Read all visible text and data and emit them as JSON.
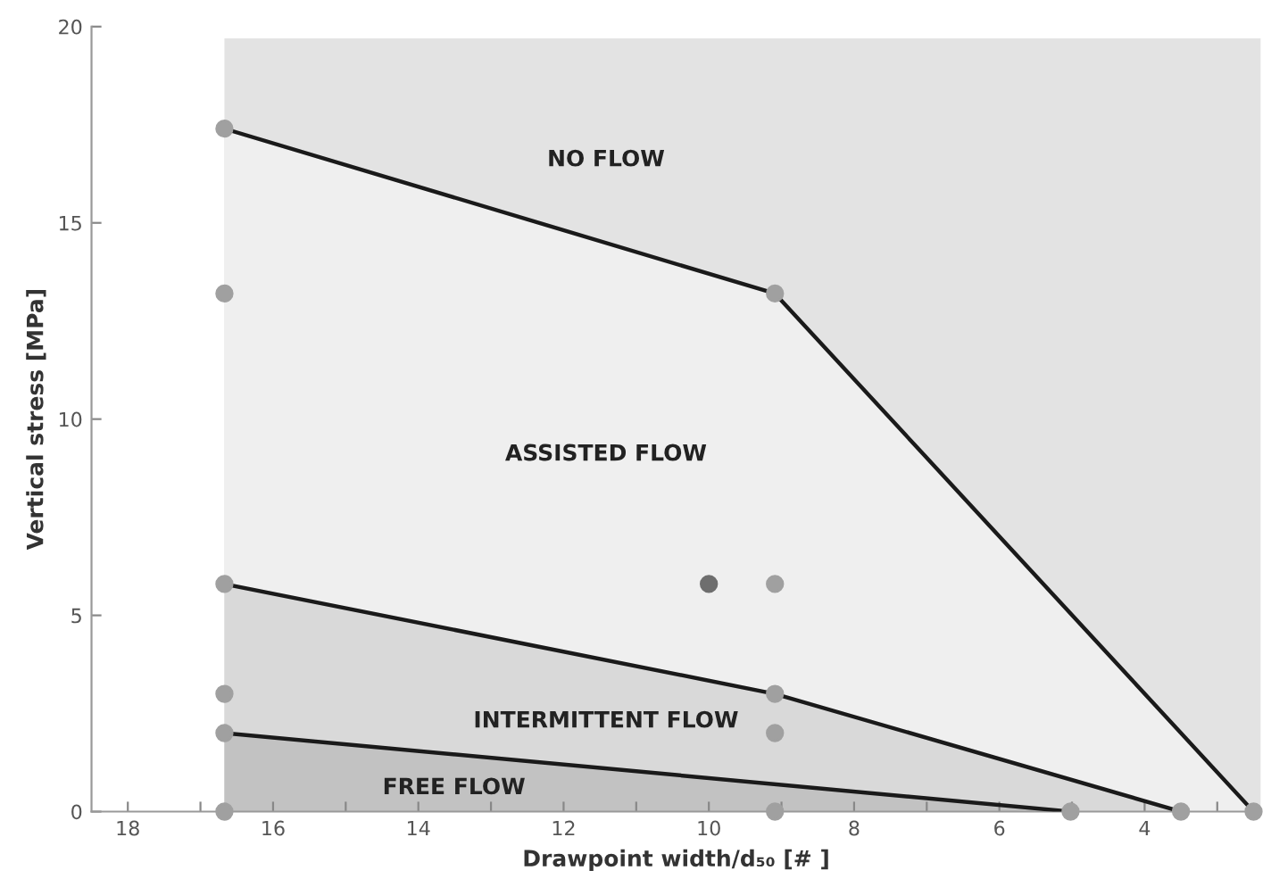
{
  "chart_data": {
    "type": "area",
    "xlabel": "Drawpoint width/d₅₀ [# ]",
    "ylabel": "Vertical stress [MPa]",
    "xlim": [
      18.5,
      2.4
    ],
    "ylim": [
      0,
      20
    ],
    "xticks": [
      18,
      {
        "value": 17,
        "label": null
      },
      16,
      {
        "value": 15,
        "label": null
      },
      14,
      {
        "value": 13,
        "label": null
      },
      12,
      {
        "value": 11,
        "label": null
      },
      10,
      {
        "value": 9,
        "label": null
      },
      8,
      {
        "value": 7,
        "label": null
      },
      6,
      {
        "value": 5,
        "label": null
      },
      4,
      {
        "value": 3,
        "label": null
      }
    ],
    "yticks": [
      0,
      5,
      10,
      15,
      20
    ],
    "grid": false,
    "legend": false,
    "series": [
      {
        "color": "#e3e3e3",
        "x": [
          16.67,
          2.4
        ],
        "values": [
          19.7,
          19.7
        ]
      },
      {
        "color": "#efefef",
        "line_style": "solid",
        "x": [
          16.67,
          9.09,
          2.5
        ],
        "values": [
          17.4,
          13.2,
          0
        ]
      },
      {
        "color": "#d9d9d9",
        "line_style": "solid",
        "x": [
          16.67,
          9.09,
          3.5
        ],
        "values": [
          5.8,
          3.0,
          0
        ]
      },
      {
        "color": "#c2c2c2",
        "line_style": "solid",
        "x": [
          16.67,
          5.02
        ],
        "values": [
          2.0,
          0
        ]
      },
      {
        "type": "scatter",
        "marker": "circle",
        "x": [
          16.67,
          16.67,
          16.67,
          16.67,
          16.67,
          16.67,
          9.09,
          9.09,
          9.09,
          9.09,
          9.09,
          10,
          5.02,
          3.5,
          2.5
        ],
        "values": [
          17.4,
          13.2,
          5.8,
          3.0,
          2.0,
          0,
          13.2,
          5.8,
          3.0,
          2.0,
          0,
          5.8,
          0,
          0,
          0
        ],
        "colors": [
          "#a0a0a0",
          "#a0a0a0",
          "#a0a0a0",
          "#a0a0a0",
          "#a0a0a0",
          "#a0a0a0",
          "#a0a0a0",
          "#a0a0a0",
          "#a0a0a0",
          "#a0a0a0",
          "#a0a0a0",
          "#6e6e6e",
          "#a0a0a0",
          "#a0a0a0",
          "#a0a0a0"
        ]
      }
    ],
    "annotations": [
      "NO FLOW",
      "ASSISTED FLOW",
      "INTERMITTENT FLOW",
      "FREE FLOW"
    ]
  }
}
